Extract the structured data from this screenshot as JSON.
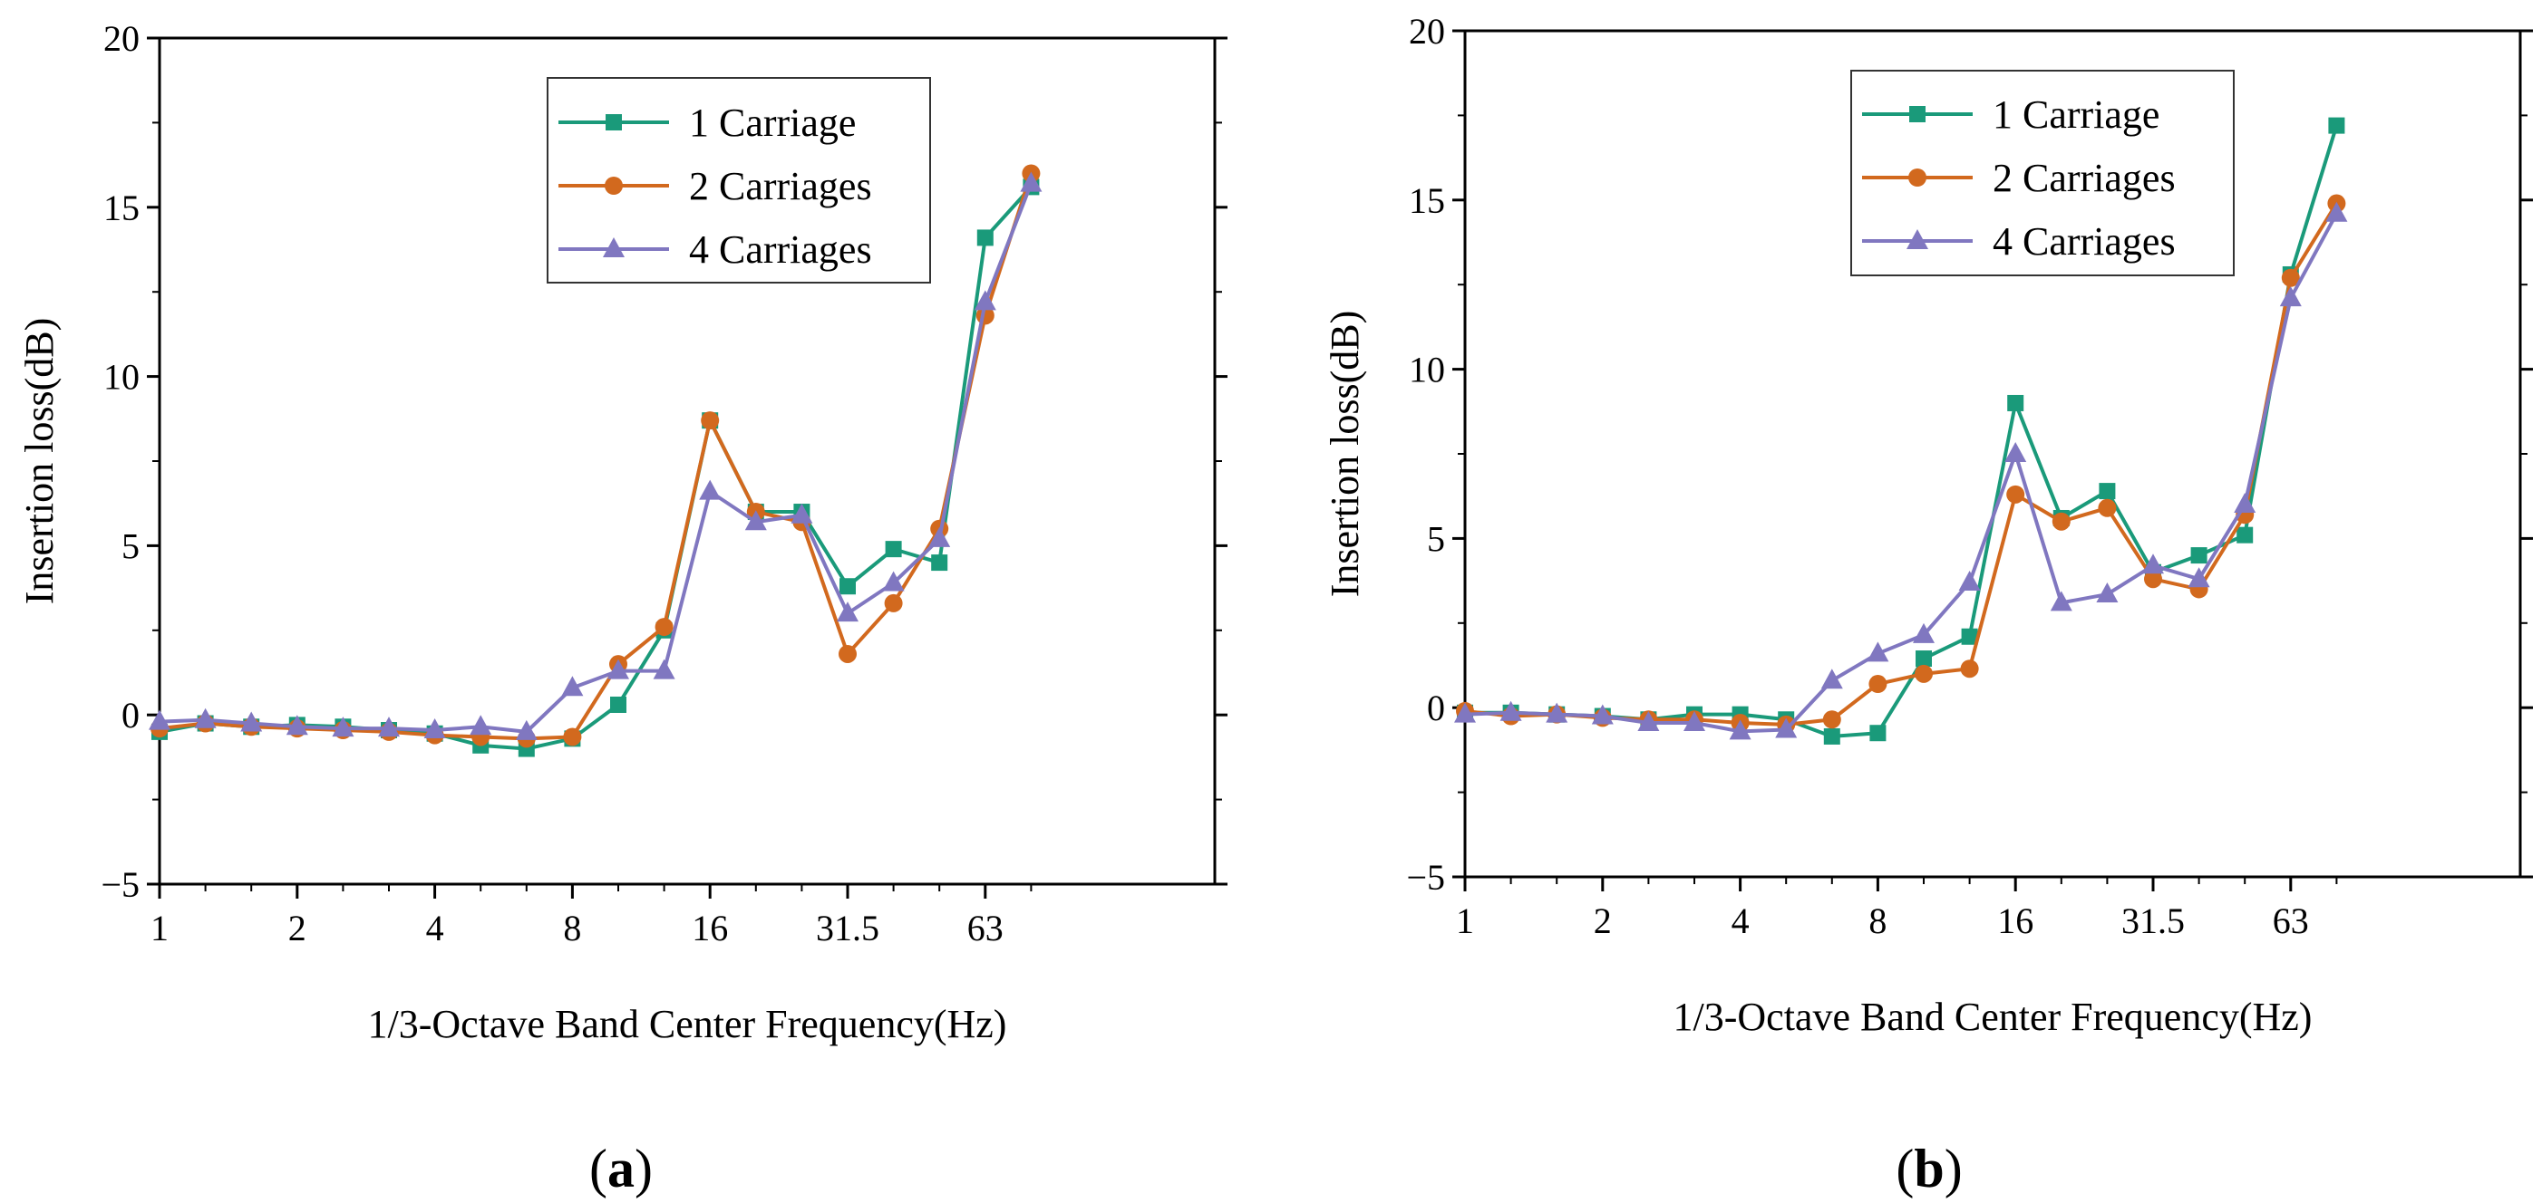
{
  "chart_data": [
    {
      "type": "line",
      "panel_label": {
        "open": "(",
        "letter": "a",
        "close": ")"
      },
      "xlabel": "1/3-Octave Band Center Frequency(Hz)",
      "ylabel": "Insertion loss(dB)",
      "ylim": [
        -5,
        20
      ],
      "yticks": [
        -5,
        0,
        5,
        10,
        15,
        20
      ],
      "xticks": [
        "1",
        "2",
        "4",
        "8",
        "16",
        "31.5",
        "63"
      ],
      "x": [
        "1",
        "1.25",
        "1.6",
        "2",
        "2.5",
        "3.15",
        "4",
        "5",
        "6.3",
        "8",
        "10",
        "12.5",
        "16",
        "20",
        "25",
        "31.5",
        "40",
        "50",
        "63",
        "80"
      ],
      "legend_position": "top-right",
      "series": [
        {
          "name": "1 Carriage",
          "color": "#1a9a7a",
          "marker": "square",
          "values": [
            -0.5,
            -0.25,
            -0.35,
            -0.3,
            -0.35,
            -0.45,
            -0.55,
            -0.9,
            -1.0,
            -0.7,
            0.3,
            2.5,
            8.7,
            6.0,
            6.0,
            3.8,
            4.9,
            4.5,
            14.1,
            15.6
          ]
        },
        {
          "name": "2 Carriages",
          "color": "#d2691e",
          "marker": "circle",
          "values": [
            -0.4,
            -0.25,
            -0.35,
            -0.4,
            -0.45,
            -0.5,
            -0.6,
            -0.65,
            -0.7,
            -0.65,
            1.5,
            2.6,
            8.7,
            6.0,
            5.7,
            1.8,
            3.3,
            5.5,
            11.8,
            16.0
          ]
        },
        {
          "name": "4 Carriages",
          "color": "#8077c0",
          "marker": "triangle",
          "values": [
            -0.2,
            -0.15,
            -0.25,
            -0.35,
            -0.4,
            -0.4,
            -0.45,
            -0.35,
            -0.5,
            0.8,
            1.3,
            1.3,
            6.6,
            5.7,
            5.9,
            3.0,
            3.9,
            5.2,
            12.2,
            15.7
          ]
        }
      ]
    },
    {
      "type": "line",
      "panel_label": {
        "open": "(",
        "letter": "b",
        "close": ")"
      },
      "xlabel": "1/3-Octave Band Center Frequency(Hz)",
      "ylabel": "Insertion loss(dB)",
      "ylim": [
        -5,
        20
      ],
      "yticks": [
        -5,
        0,
        5,
        10,
        15,
        20
      ],
      "xticks": [
        "1",
        "2",
        "4",
        "8",
        "16",
        "31.5",
        "63"
      ],
      "x": [
        "1",
        "1.25",
        "1.6",
        "2",
        "2.5",
        "3.15",
        "4",
        "5",
        "6.3",
        "8",
        "10",
        "12.5",
        "16",
        "20",
        "25",
        "31.5",
        "40",
        "50",
        "63",
        "80"
      ],
      "legend_position": "top-right",
      "series": [
        {
          "name": "1 Carriage",
          "color": "#1a9a7a",
          "marker": "square",
          "values": [
            -0.15,
            -0.15,
            -0.2,
            -0.25,
            -0.35,
            -0.2,
            -0.2,
            -0.35,
            -0.85,
            -0.75,
            1.45,
            2.1,
            9.0,
            5.6,
            6.4,
            4.0,
            4.5,
            5.1,
            12.8,
            17.2
          ]
        },
        {
          "name": "2 Carriages",
          "color": "#d2691e",
          "marker": "circle",
          "values": [
            -0.1,
            -0.25,
            -0.2,
            -0.3,
            -0.35,
            -0.35,
            -0.45,
            -0.5,
            -0.35,
            0.7,
            1.0,
            1.15,
            6.3,
            5.5,
            5.9,
            3.8,
            3.5,
            5.7,
            12.7,
            14.9
          ]
        },
        {
          "name": "4 Carriages",
          "color": "#8077c0",
          "marker": "triangle",
          "values": [
            -0.2,
            -0.15,
            -0.2,
            -0.25,
            -0.45,
            -0.45,
            -0.7,
            -0.65,
            0.8,
            1.6,
            2.15,
            3.7,
            7.5,
            3.1,
            3.35,
            4.2,
            3.8,
            6.0,
            12.1,
            14.6
          ]
        }
      ]
    }
  ]
}
